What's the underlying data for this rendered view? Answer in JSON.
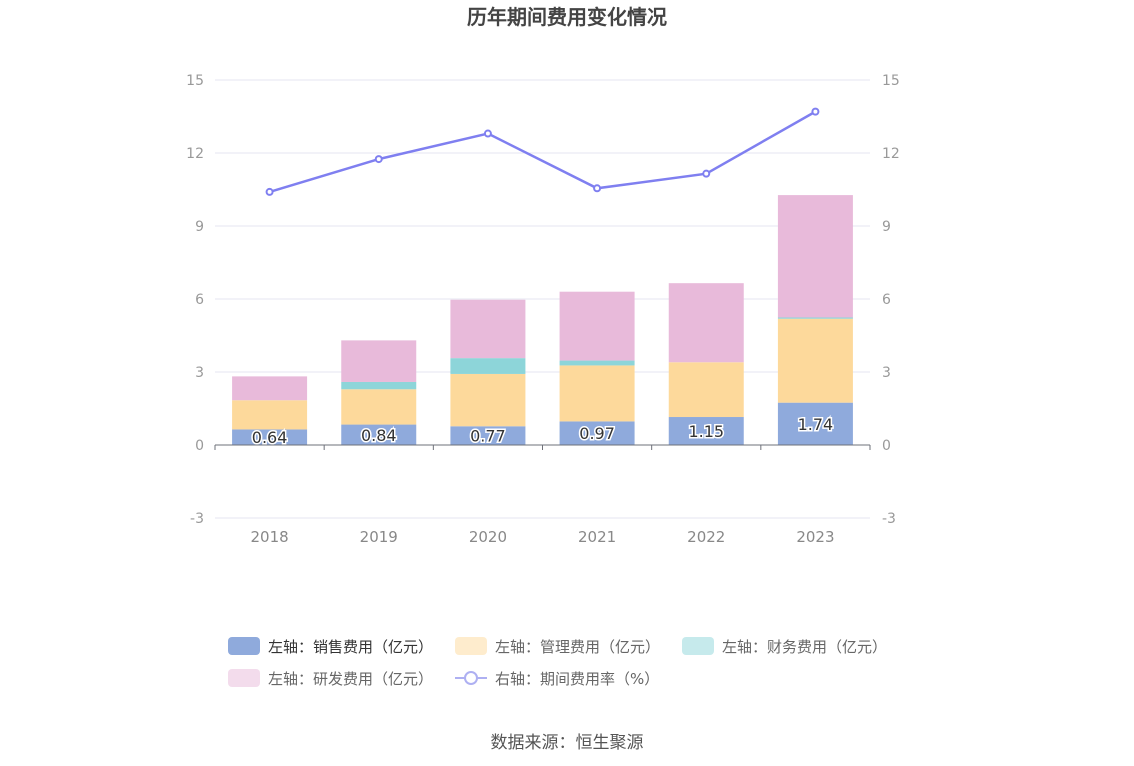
{
  "chart_data": {
    "type": "bar",
    "title": "历年期间费用变化情况",
    "categories": [
      "2018",
      "2019",
      "2020",
      "2021",
      "2022",
      "2023"
    ],
    "stacked": true,
    "series": [
      {
        "name": "左轴：销售费用（亿元）",
        "values": [
          0.64,
          0.84,
          0.77,
          0.97,
          1.15,
          1.74
        ],
        "color": "#8faadc",
        "labels": [
          "0.64",
          "0.84",
          "0.77",
          "0.97",
          "1.15",
          "1.74"
        ]
      },
      {
        "name": "左轴：管理费用（亿元）",
        "values": [
          1.2,
          1.45,
          2.15,
          2.3,
          2.25,
          3.45
        ],
        "color": "#fdd99b"
      },
      {
        "name": "左轴：财务费用（亿元）",
        "values": [
          0.0,
          0.3,
          0.65,
          0.2,
          0.0,
          0.05
        ],
        "color": "#8dd5d9"
      },
      {
        "name": "左轴：研发费用（亿元）",
        "values": [
          0.98,
          1.71,
          2.4,
          2.83,
          3.25,
          5.03
        ],
        "color": "#e8bada"
      },
      {
        "name": "右轴：期间费用率（%）",
        "type": "line",
        "axis": "right",
        "values": [
          10.4,
          11.75,
          12.8,
          10.55,
          11.15,
          13.7
        ],
        "color": "#7f7ff0"
      }
    ],
    "ylim": [
      -3,
      15
    ],
    "yticks": [
      -3,
      0,
      3,
      6,
      9,
      12,
      15
    ],
    "y2lim": [
      -3,
      15
    ],
    "y2ticks": [
      -3,
      0,
      3,
      6,
      9,
      12,
      15
    ],
    "grid": true,
    "legend_position": "bottom"
  },
  "legend": {
    "row1": [
      "左轴：销售费用（亿元）",
      "左轴：管理费用（亿元）",
      "左轴：财务费用（亿元）"
    ],
    "row2": [
      "左轴：研发费用（亿元）",
      "右轴：期间费用率（%）"
    ]
  },
  "source": "数据来源：恒生聚源"
}
